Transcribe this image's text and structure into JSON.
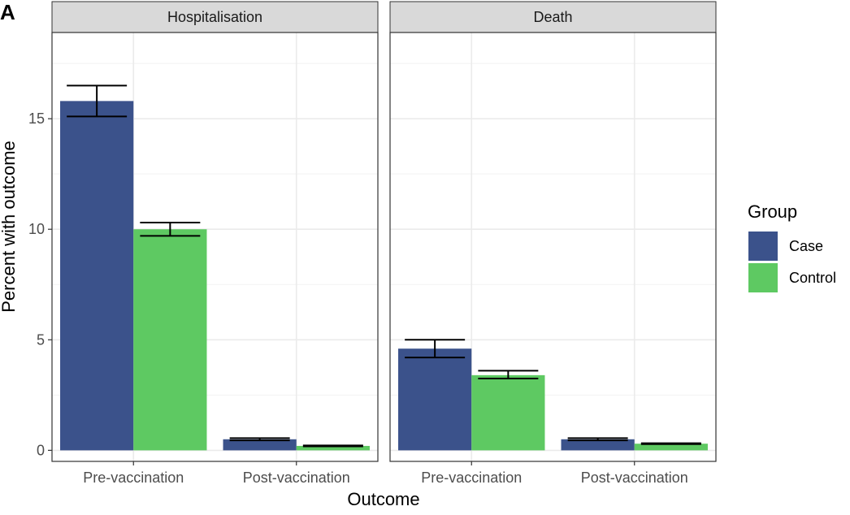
{
  "panel_label": "A",
  "chart_data": {
    "type": "bar",
    "xlabel": "Outcome",
    "ylabel": "Percent with outcome",
    "ylim": [
      -0.5,
      18.9
    ],
    "yticks": [
      0,
      5,
      10,
      15
    ],
    "grid": true,
    "legend": {
      "title": "Group",
      "position": "right",
      "entries": [
        {
          "name": "Case",
          "color": "#3b528b"
        },
        {
          "name": "Control",
          "color": "#5ec962"
        }
      ]
    },
    "categories": [
      "Pre-vaccination",
      "Post-vaccination"
    ],
    "facets": [
      {
        "title": "Hospitalisation",
        "series": [
          {
            "name": "Case",
            "values": [
              15.8,
              0.5
            ],
            "error_low": [
              15.1,
              0.45
            ],
            "error_high": [
              16.5,
              0.55
            ]
          },
          {
            "name": "Control",
            "values": [
              10.0,
              0.2
            ],
            "error_low": [
              9.7,
              0.18
            ],
            "error_high": [
              10.3,
              0.22
            ]
          }
        ]
      },
      {
        "title": "Death",
        "series": [
          {
            "name": "Case",
            "values": [
              4.6,
              0.5
            ],
            "error_low": [
              4.2,
              0.45
            ],
            "error_high": [
              5.0,
              0.55
            ]
          },
          {
            "name": "Control",
            "values": [
              3.4,
              0.3
            ],
            "error_low": [
              3.25,
              0.28
            ],
            "error_high": [
              3.6,
              0.32
            ]
          }
        ]
      }
    ]
  }
}
